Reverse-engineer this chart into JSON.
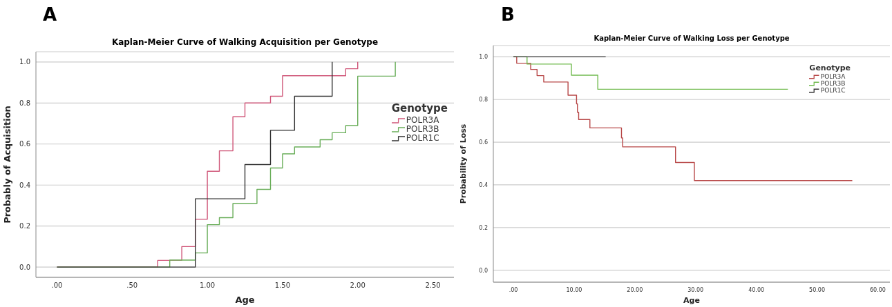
{
  "chart_data": [
    {
      "type": "step",
      "title": "Kaplan-Meier Curve of Walking Acquisition per Genotype",
      "xlabel": "Age",
      "ylabel": "Probably of Acquisition",
      "legend_title": "Genotype",
      "annotations": [
        "A"
      ],
      "series": [
        {
          "name": "POLR3A",
          "color": "#d0587a",
          "x": [
            0,
            0.67,
            0.83,
            0.92,
            1.0,
            1.08,
            1.17,
            1.25,
            1.42,
            1.5,
            1.92,
            2.0
          ],
          "values": [
            0,
            0.033,
            0.1,
            0.233,
            0.467,
            0.567,
            0.733,
            0.8,
            0.833,
            0.933,
            0.967,
            1.0
          ]
        },
        {
          "name": "POLR3B",
          "color": "#6aae5a",
          "x": [
            0,
            0.75,
            0.92,
            1.0,
            1.08,
            1.17,
            1.33,
            1.42,
            1.5,
            1.58,
            1.75,
            1.83,
            1.92,
            2.0,
            2.25
          ],
          "values": [
            0,
            0.034,
            0.069,
            0.207,
            0.241,
            0.31,
            0.379,
            0.483,
            0.552,
            0.586,
            0.621,
            0.655,
            0.69,
            0.931,
            1.0
          ]
        },
        {
          "name": "POLR1C",
          "color": "#333333",
          "x": [
            0,
            0.92,
            1.25,
            1.42,
            1.58,
            1.83
          ],
          "values": [
            0,
            0.333,
            0.5,
            0.667,
            0.833,
            1.0
          ]
        }
      ],
      "xlim": [
        -0.14,
        2.64
      ],
      "xticks": [
        {
          "value": 0,
          "label": ".00"
        },
        {
          "value": 0.5,
          "label": ".50"
        },
        {
          "value": 1,
          "label": "1.00"
        },
        {
          "value": 1.5,
          "label": "1.50"
        },
        {
          "value": 2,
          "label": "2.00"
        },
        {
          "value": 2.5,
          "label": "2.50"
        }
      ],
      "ylim": [
        -0.05,
        1.05
      ],
      "yticks": [
        {
          "value": 0,
          "label": "0.0"
        },
        {
          "value": 0.2,
          "label": "0.2"
        },
        {
          "value": 0.4,
          "label": "0.4"
        },
        {
          "value": 0.6,
          "label": "0.6"
        },
        {
          "value": 0.8,
          "label": "0.8"
        },
        {
          "value": 1,
          "label": "1.0"
        }
      ],
      "grid": "y",
      "legend": "right",
      "marker": "none"
    },
    {
      "type": "step",
      "title": "Kaplan-Meier Curve of Walking Loss per Genotype",
      "xlabel": "Age",
      "ylabel": "Probability of Loss",
      "legend_title": "Genotype",
      "annotations": [
        "B"
      ],
      "series": [
        {
          "name": "POLR3A",
          "color": "#b84848",
          "x": [
            0,
            0.55,
            2.85,
            3.9,
            5.0,
            9.0,
            10.4,
            10.55,
            10.75,
            12.6,
            17.8,
            18.0,
            26.7,
            29.8,
            55.8
          ],
          "values": [
            1.0,
            0.97,
            0.941,
            0.912,
            0.882,
            0.82,
            0.78,
            0.74,
            0.706,
            0.667,
            0.62,
            0.578,
            0.505,
            0.42,
            0.42
          ]
        },
        {
          "name": "POLR3B",
          "color": "#72bb50",
          "x": [
            0,
            2.25,
            9.55,
            13.9,
            45.2
          ],
          "values": [
            1.0,
            0.966,
            0.914,
            0.848,
            0.848
          ]
        },
        {
          "name": "POLR1C",
          "color": "#333333",
          "x": [
            0,
            15.2
          ],
          "values": [
            1.0,
            1.0
          ]
        }
      ],
      "xlim": [
        -3.3,
        62
      ],
      "xticks": [
        {
          "value": 0,
          "label": ".00"
        },
        {
          "value": 10,
          "label": "10.00"
        },
        {
          "value": 20,
          "label": "20.00"
        },
        {
          "value": 30,
          "label": "30.00"
        },
        {
          "value": 40,
          "label": "40.00"
        },
        {
          "value": 50,
          "label": "50.00"
        },
        {
          "value": 60,
          "label": "60.00"
        }
      ],
      "ylim": [
        -0.056,
        1.053
      ],
      "yticks": [
        {
          "value": 0,
          "label": "0.0"
        },
        {
          "value": 0.2,
          "label": "0.2"
        },
        {
          "value": 0.4,
          "label": "0.4"
        },
        {
          "value": 0.6,
          "label": "0.6"
        },
        {
          "value": 0.8,
          "label": "0.8"
        },
        {
          "value": 1,
          "label": "1.0"
        }
      ],
      "grid": "y",
      "legend": "top right",
      "marker": "none"
    }
  ]
}
